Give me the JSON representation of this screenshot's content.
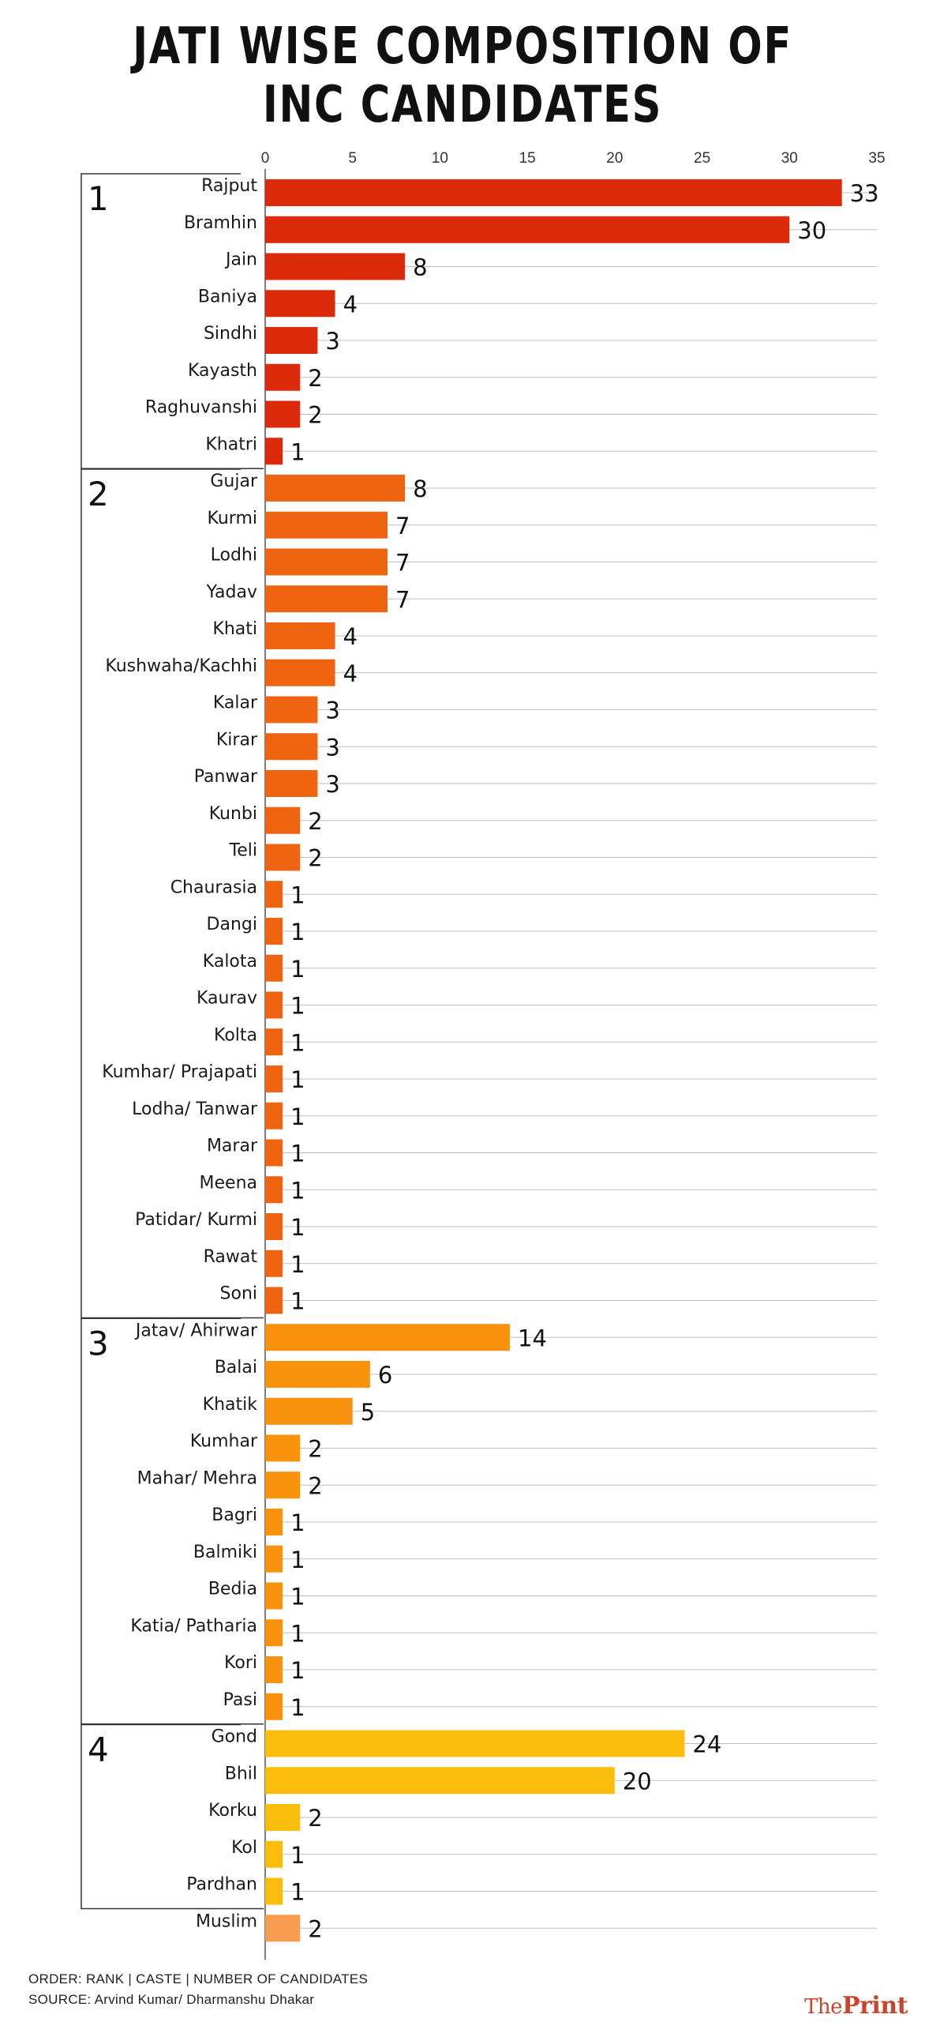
{
  "title_lines": [
    "JATI WISE COMPOSITION OF",
    "INC CANDIDATES"
  ],
  "footer": {
    "order": "ORDER: RANK | CASTE | NUMBER OF CANDIDATES",
    "source": "SOURCE: Arvind Kumar/ Dharmanshu Dhakar"
  },
  "brand": {
    "prefix": "The",
    "name": "Print"
  },
  "colors": {
    "group1": "#dc2b0b",
    "group2": "#ee6410",
    "group3": "#f9920c",
    "group4": "#fbbd0b",
    "muslim": "#f89c4f"
  },
  "chart_data": {
    "type": "bar",
    "orientation": "horizontal",
    "title": "JATI WISE COMPOSITION OF INC CANDIDATES",
    "xlim": [
      0,
      35
    ],
    "x_ticks": [
      0,
      5,
      10,
      15,
      20,
      25,
      30,
      35
    ],
    "x_axis_position": "top",
    "grid": true,
    "groups": [
      {
        "rank": "1",
        "color_key": "group1",
        "items": [
          {
            "name": "Rajput",
            "value": 33
          },
          {
            "name": "Bramhin",
            "value": 30
          },
          {
            "name": "Jain",
            "value": 8
          },
          {
            "name": "Baniya",
            "value": 4
          },
          {
            "name": "Sindhi",
            "value": 3
          },
          {
            "name": "Kayasth",
            "value": 2
          },
          {
            "name": "Raghuvanshi",
            "value": 2
          },
          {
            "name": "Khatri",
            "value": 1
          }
        ]
      },
      {
        "rank": "2",
        "color_key": "group2",
        "items": [
          {
            "name": "Gujar",
            "value": 8
          },
          {
            "name": "Kurmi",
            "value": 7
          },
          {
            "name": "Lodhi",
            "value": 7
          },
          {
            "name": "Yadav",
            "value": 7
          },
          {
            "name": "Khati",
            "value": 4
          },
          {
            "name": "Kushwaha/Kachhi",
            "value": 4
          },
          {
            "name": "Kalar",
            "value": 3
          },
          {
            "name": "Kirar",
            "value": 3
          },
          {
            "name": "Panwar",
            "value": 3
          },
          {
            "name": "Kunbi",
            "value": 2
          },
          {
            "name": "Teli",
            "value": 2
          },
          {
            "name": "Chaurasia",
            "value": 1
          },
          {
            "name": "Dangi",
            "value": 1
          },
          {
            "name": "Kalota",
            "value": 1
          },
          {
            "name": "Kaurav",
            "value": 1
          },
          {
            "name": "Kolta",
            "value": 1
          },
          {
            "name": "Kumhar/ Prajapati",
            "value": 1
          },
          {
            "name": "Lodha/ Tanwar",
            "value": 1
          },
          {
            "name": "Marar",
            "value": 1
          },
          {
            "name": "Meena",
            "value": 1
          },
          {
            "name": "Patidar/ Kurmi",
            "value": 1
          },
          {
            "name": "Rawat",
            "value": 1
          },
          {
            "name": "Soni",
            "value": 1
          }
        ]
      },
      {
        "rank": "3",
        "color_key": "group3",
        "items": [
          {
            "name": "Jatav/ Ahirwar",
            "value": 14
          },
          {
            "name": "Balai",
            "value": 6
          },
          {
            "name": "Khatik",
            "value": 5
          },
          {
            "name": "Kumhar",
            "value": 2
          },
          {
            "name": "Mahar/ Mehra",
            "value": 2
          },
          {
            "name": "Bagri",
            "value": 1
          },
          {
            "name": "Balmiki",
            "value": 1
          },
          {
            "name": "Bedia",
            "value": 1
          },
          {
            "name": "Katia/ Patharia",
            "value": 1
          },
          {
            "name": "Kori",
            "value": 1
          },
          {
            "name": "Pasi",
            "value": 1
          }
        ]
      },
      {
        "rank": "4",
        "color_key": "group4",
        "items": [
          {
            "name": "Gond",
            "value": 24
          },
          {
            "name": "Bhil",
            "value": 20
          },
          {
            "name": "Korku",
            "value": 2
          },
          {
            "name": "Kol",
            "value": 1
          },
          {
            "name": "Pardhan",
            "value": 1
          }
        ]
      },
      {
        "rank": "",
        "color_key": "muslim",
        "items": [
          {
            "name": "Muslim",
            "value": 2
          }
        ]
      }
    ]
  }
}
